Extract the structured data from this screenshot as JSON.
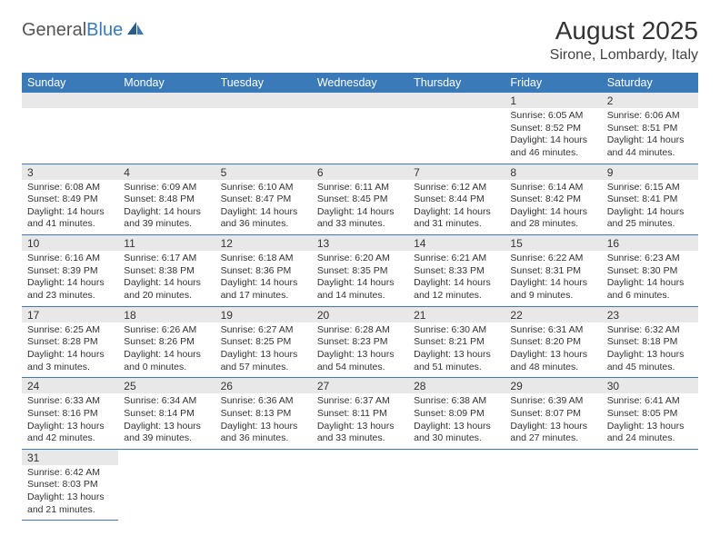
{
  "logo": {
    "text1": "General",
    "text2": "Blue"
  },
  "title": "August 2025",
  "subtitle": "Sirone, Lombardy, Italy",
  "colors": {
    "header_bg": "#3a7ab8",
    "header_fg": "#ffffff",
    "daynum_bg": "#e8e8e8",
    "border": "#3a7ab8",
    "text": "#333333",
    "background": "#ffffff"
  },
  "typography": {
    "title_fontsize": 28,
    "subtitle_fontsize": 16,
    "header_fontsize": 12.5,
    "daynum_fontsize": 12,
    "body_fontsize": 10.5
  },
  "calendar": {
    "type": "table",
    "columns": [
      "Sunday",
      "Monday",
      "Tuesday",
      "Wednesday",
      "Thursday",
      "Friday",
      "Saturday"
    ],
    "weeks": [
      [
        null,
        null,
        null,
        null,
        null,
        {
          "day": "1",
          "sunrise": "Sunrise: 6:05 AM",
          "sunset": "Sunset: 8:52 PM",
          "daylight": "Daylight: 14 hours and 46 minutes."
        },
        {
          "day": "2",
          "sunrise": "Sunrise: 6:06 AM",
          "sunset": "Sunset: 8:51 PM",
          "daylight": "Daylight: 14 hours and 44 minutes."
        }
      ],
      [
        {
          "day": "3",
          "sunrise": "Sunrise: 6:08 AM",
          "sunset": "Sunset: 8:49 PM",
          "daylight": "Daylight: 14 hours and 41 minutes."
        },
        {
          "day": "4",
          "sunrise": "Sunrise: 6:09 AM",
          "sunset": "Sunset: 8:48 PM",
          "daylight": "Daylight: 14 hours and 39 minutes."
        },
        {
          "day": "5",
          "sunrise": "Sunrise: 6:10 AM",
          "sunset": "Sunset: 8:47 PM",
          "daylight": "Daylight: 14 hours and 36 minutes."
        },
        {
          "day": "6",
          "sunrise": "Sunrise: 6:11 AM",
          "sunset": "Sunset: 8:45 PM",
          "daylight": "Daylight: 14 hours and 33 minutes."
        },
        {
          "day": "7",
          "sunrise": "Sunrise: 6:12 AM",
          "sunset": "Sunset: 8:44 PM",
          "daylight": "Daylight: 14 hours and 31 minutes."
        },
        {
          "day": "8",
          "sunrise": "Sunrise: 6:14 AM",
          "sunset": "Sunset: 8:42 PM",
          "daylight": "Daylight: 14 hours and 28 minutes."
        },
        {
          "day": "9",
          "sunrise": "Sunrise: 6:15 AM",
          "sunset": "Sunset: 8:41 PM",
          "daylight": "Daylight: 14 hours and 25 minutes."
        }
      ],
      [
        {
          "day": "10",
          "sunrise": "Sunrise: 6:16 AM",
          "sunset": "Sunset: 8:39 PM",
          "daylight": "Daylight: 14 hours and 23 minutes."
        },
        {
          "day": "11",
          "sunrise": "Sunrise: 6:17 AM",
          "sunset": "Sunset: 8:38 PM",
          "daylight": "Daylight: 14 hours and 20 minutes."
        },
        {
          "day": "12",
          "sunrise": "Sunrise: 6:18 AM",
          "sunset": "Sunset: 8:36 PM",
          "daylight": "Daylight: 14 hours and 17 minutes."
        },
        {
          "day": "13",
          "sunrise": "Sunrise: 6:20 AM",
          "sunset": "Sunset: 8:35 PM",
          "daylight": "Daylight: 14 hours and 14 minutes."
        },
        {
          "day": "14",
          "sunrise": "Sunrise: 6:21 AM",
          "sunset": "Sunset: 8:33 PM",
          "daylight": "Daylight: 14 hours and 12 minutes."
        },
        {
          "day": "15",
          "sunrise": "Sunrise: 6:22 AM",
          "sunset": "Sunset: 8:31 PM",
          "daylight": "Daylight: 14 hours and 9 minutes."
        },
        {
          "day": "16",
          "sunrise": "Sunrise: 6:23 AM",
          "sunset": "Sunset: 8:30 PM",
          "daylight": "Daylight: 14 hours and 6 minutes."
        }
      ],
      [
        {
          "day": "17",
          "sunrise": "Sunrise: 6:25 AM",
          "sunset": "Sunset: 8:28 PM",
          "daylight": "Daylight: 14 hours and 3 minutes."
        },
        {
          "day": "18",
          "sunrise": "Sunrise: 6:26 AM",
          "sunset": "Sunset: 8:26 PM",
          "daylight": "Daylight: 14 hours and 0 minutes."
        },
        {
          "day": "19",
          "sunrise": "Sunrise: 6:27 AM",
          "sunset": "Sunset: 8:25 PM",
          "daylight": "Daylight: 13 hours and 57 minutes."
        },
        {
          "day": "20",
          "sunrise": "Sunrise: 6:28 AM",
          "sunset": "Sunset: 8:23 PM",
          "daylight": "Daylight: 13 hours and 54 minutes."
        },
        {
          "day": "21",
          "sunrise": "Sunrise: 6:30 AM",
          "sunset": "Sunset: 8:21 PM",
          "daylight": "Daylight: 13 hours and 51 minutes."
        },
        {
          "day": "22",
          "sunrise": "Sunrise: 6:31 AM",
          "sunset": "Sunset: 8:20 PM",
          "daylight": "Daylight: 13 hours and 48 minutes."
        },
        {
          "day": "23",
          "sunrise": "Sunrise: 6:32 AM",
          "sunset": "Sunset: 8:18 PM",
          "daylight": "Daylight: 13 hours and 45 minutes."
        }
      ],
      [
        {
          "day": "24",
          "sunrise": "Sunrise: 6:33 AM",
          "sunset": "Sunset: 8:16 PM",
          "daylight": "Daylight: 13 hours and 42 minutes."
        },
        {
          "day": "25",
          "sunrise": "Sunrise: 6:34 AM",
          "sunset": "Sunset: 8:14 PM",
          "daylight": "Daylight: 13 hours and 39 minutes."
        },
        {
          "day": "26",
          "sunrise": "Sunrise: 6:36 AM",
          "sunset": "Sunset: 8:13 PM",
          "daylight": "Daylight: 13 hours and 36 minutes."
        },
        {
          "day": "27",
          "sunrise": "Sunrise: 6:37 AM",
          "sunset": "Sunset: 8:11 PM",
          "daylight": "Daylight: 13 hours and 33 minutes."
        },
        {
          "day": "28",
          "sunrise": "Sunrise: 6:38 AM",
          "sunset": "Sunset: 8:09 PM",
          "daylight": "Daylight: 13 hours and 30 minutes."
        },
        {
          "day": "29",
          "sunrise": "Sunrise: 6:39 AM",
          "sunset": "Sunset: 8:07 PM",
          "daylight": "Daylight: 13 hours and 27 minutes."
        },
        {
          "day": "30",
          "sunrise": "Sunrise: 6:41 AM",
          "sunset": "Sunset: 8:05 PM",
          "daylight": "Daylight: 13 hours and 24 minutes."
        }
      ],
      [
        {
          "day": "31",
          "sunrise": "Sunrise: 6:42 AM",
          "sunset": "Sunset: 8:03 PM",
          "daylight": "Daylight: 13 hours and 21 minutes."
        },
        null,
        null,
        null,
        null,
        null,
        null
      ]
    ]
  }
}
